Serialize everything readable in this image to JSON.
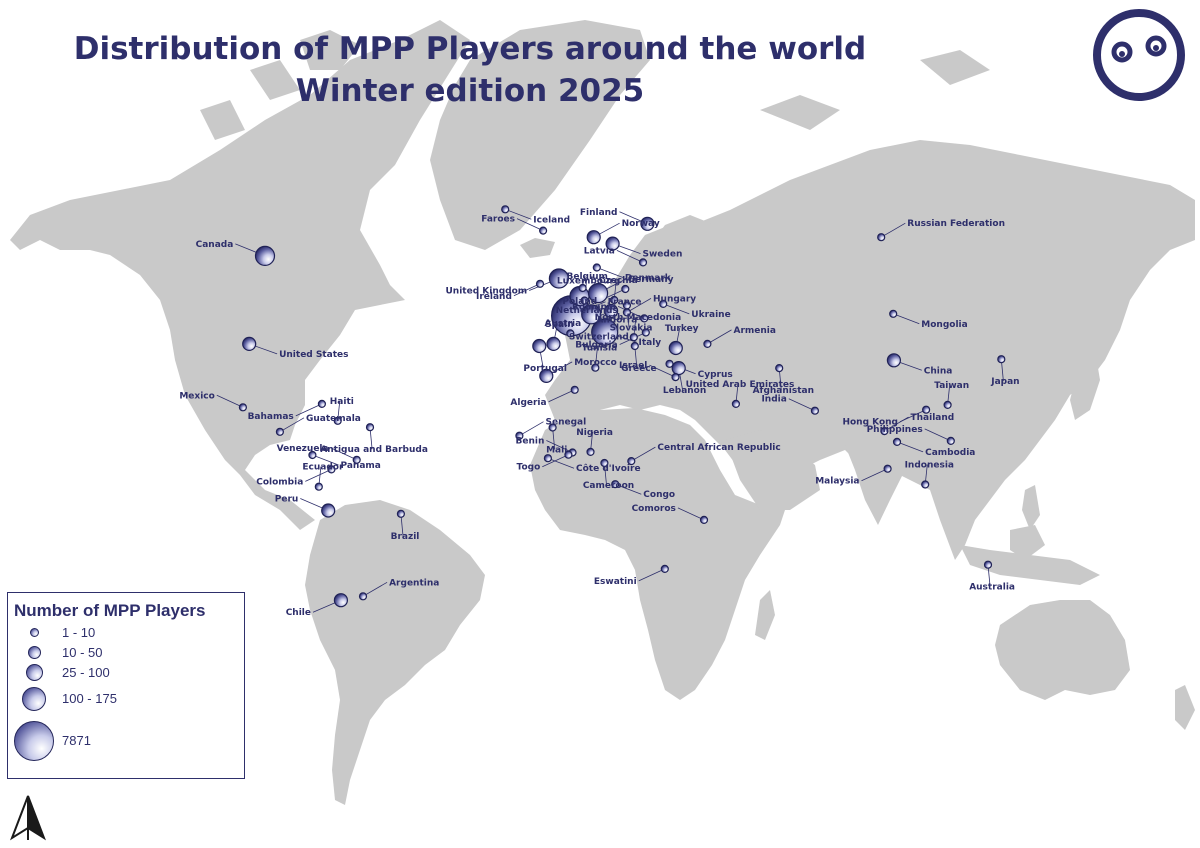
{
  "title_line1": "Distribution of MPP Players around the world",
  "title_line2": "Winter edition 2025",
  "colors": {
    "land": "#c9c9c9",
    "ocean": "#ffffff",
    "accent": "#2e2f6b"
  },
  "legend": {
    "title": "Number of MPP Players",
    "classes": [
      {
        "label": "1 - 10",
        "size": 1
      },
      {
        "label": "10 - 50",
        "size": 2
      },
      {
        "label": "25 - 100",
        "size": 3
      },
      {
        "label": "100 - 175",
        "size": 4
      },
      {
        "label": "7871",
        "size": 5
      }
    ]
  },
  "icons": {
    "logo": "face-logo-icon",
    "north_arrow": "north-arrow-icon"
  },
  "countries": [
    {
      "name": "Canada",
      "lon": -95,
      "lat": 58,
      "size": 3
    },
    {
      "name": "United States",
      "lon": -100,
      "lat": 40,
      "size": 2
    },
    {
      "name": "Mexico",
      "lon": -102,
      "lat": 23,
      "size": 1
    },
    {
      "name": "Bahamas",
      "lon": -77,
      "lat": 24,
      "size": 1
    },
    {
      "name": "Haiti",
      "lon": -72,
      "lat": 19,
      "size": 1
    },
    {
      "name": "Antigua and Barbuda",
      "lon": -61.8,
      "lat": 17.1,
      "size": 1
    },
    {
      "name": "Guatemala",
      "lon": -90.3,
      "lat": 15.7,
      "size": 1
    },
    {
      "name": "Panama",
      "lon": -80,
      "lat": 8.5,
      "size": 1
    },
    {
      "name": "Venezuela",
      "lon": -66,
      "lat": 7,
      "size": 1
    },
    {
      "name": "Colombia",
      "lon": -74,
      "lat": 4,
      "size": 1
    },
    {
      "name": "Ecuador",
      "lon": -78,
      "lat": -1.5,
      "size": 1
    },
    {
      "name": "Peru",
      "lon": -75,
      "lat": -9,
      "size": 2
    },
    {
      "name": "Brazil",
      "lon": -52,
      "lat": -10,
      "size": 1
    },
    {
      "name": "Chile",
      "lon": -71,
      "lat": -35,
      "size": 2
    },
    {
      "name": "Argentina",
      "lon": -64,
      "lat": -34,
      "size": 1
    },
    {
      "name": "Iceland",
      "lon": -19,
      "lat": 65,
      "size": 1
    },
    {
      "name": "Faroes",
      "lon": -7,
      "lat": 62,
      "size": 1
    },
    {
      "name": "Ireland",
      "lon": -8,
      "lat": 53,
      "size": 1
    },
    {
      "name": "United Kingdom",
      "lon": -2,
      "lat": 54,
      "size": 3
    },
    {
      "name": "France",
      "lon": 2,
      "lat": 46.5,
      "size": 5
    },
    {
      "name": "Belgium",
      "lon": 4.5,
      "lat": 50.6,
      "size": 3
    },
    {
      "name": "Luxembourg",
      "lon": 6.1,
      "lat": 49.7,
      "size": 1
    },
    {
      "name": "Netherlands",
      "lon": 5.5,
      "lat": 52.2,
      "size": 1
    },
    {
      "name": "Spain",
      "lon": -3.7,
      "lat": 40,
      "size": 2
    },
    {
      "name": "Portugal",
      "lon": -8.2,
      "lat": 39.5,
      "size": 2
    },
    {
      "name": "Andorra",
      "lon": 1.6,
      "lat": 42.5,
      "size": 1
    },
    {
      "name": "Switzerland",
      "lon": 8.2,
      "lat": 46.8,
      "size": 3
    },
    {
      "name": "Italy",
      "lon": 12.5,
      "lat": 42.8,
      "size": 4
    },
    {
      "name": "Germany",
      "lon": 10.4,
      "lat": 51.2,
      "size": 3
    },
    {
      "name": "Denmark",
      "lon": 10,
      "lat": 56,
      "size": 1
    },
    {
      "name": "Norway",
      "lon": 9,
      "lat": 61,
      "size": 2
    },
    {
      "name": "Sweden",
      "lon": 15,
      "lat": 60,
      "size": 2
    },
    {
      "name": "Finland",
      "lon": 26,
      "lat": 63,
      "size": 2
    },
    {
      "name": "Latvia",
      "lon": 24.6,
      "lat": 56.9,
      "size": 1
    },
    {
      "name": "Poland",
      "lon": 19,
      "lat": 52,
      "size": 1
    },
    {
      "name": "Czechia",
      "lon": 15.5,
      "lat": 49.8,
      "size": 1
    },
    {
      "name": "Slovakia",
      "lon": 19.5,
      "lat": 48.7,
      "size": 1
    },
    {
      "name": "Austria",
      "lon": 14.5,
      "lat": 47.5,
      "size": 2
    },
    {
      "name": "Hungary",
      "lon": 19.5,
      "lat": 47.2,
      "size": 1
    },
    {
      "name": "Ukraine",
      "lon": 31,
      "lat": 49,
      "size": 1
    },
    {
      "name": "Romania",
      "lon": 25,
      "lat": 45.9,
      "size": 1
    },
    {
      "name": "Bulgaria",
      "lon": 25.5,
      "lat": 42.7,
      "size": 1
    },
    {
      "name": "North Macedonia",
      "lon": 21.7,
      "lat": 41.6,
      "size": 1
    },
    {
      "name": "Greece",
      "lon": 22,
      "lat": 39.5,
      "size": 1
    },
    {
      "name": "Turkey",
      "lon": 35,
      "lat": 39,
      "size": 2
    },
    {
      "name": "Armenia",
      "lon": 45,
      "lat": 40,
      "size": 1
    },
    {
      "name": "Cyprus",
      "lon": 33,
      "lat": 35,
      "size": 1
    },
    {
      "name": "Lebanon",
      "lon": 35.9,
      "lat": 33.9,
      "size": 2
    },
    {
      "name": "Israel",
      "lon": 34.9,
      "lat": 31.5,
      "size": 1
    },
    {
      "name": "Morocco",
      "lon": -6,
      "lat": 31.8,
      "size": 2
    },
    {
      "name": "Algeria",
      "lon": 3,
      "lat": 28,
      "size": 1
    },
    {
      "name": "Tunisia",
      "lon": 9.5,
      "lat": 34,
      "size": 1
    },
    {
      "name": "Mali",
      "lon": -4,
      "lat": 17,
      "size": 1
    },
    {
      "name": "Senegal",
      "lon": -14.5,
      "lat": 14.5,
      "size": 1
    },
    {
      "name": "Côte d'Ivoire",
      "lon": -5.5,
      "lat": 7.5,
      "size": 1
    },
    {
      "name": "Benin",
      "lon": 2.3,
      "lat": 9.3,
      "size": 1
    },
    {
      "name": "Togo",
      "lon": 1,
      "lat": 8.6,
      "size": 1
    },
    {
      "name": "Nigeria",
      "lon": 8,
      "lat": 9.5,
      "size": 1
    },
    {
      "name": "Cameroon",
      "lon": 12.4,
      "lat": 6,
      "size": 1
    },
    {
      "name": "Central African Republic",
      "lon": 20.9,
      "lat": 6.6,
      "size": 1
    },
    {
      "name": "Congo",
      "lon": 15.8,
      "lat": -0.7,
      "size": 1
    },
    {
      "name": "Comoros",
      "lon": 43.9,
      "lat": -11.9,
      "size": 1
    },
    {
      "name": "Eswatini",
      "lon": 31.5,
      "lat": -26.5,
      "size": 1
    },
    {
      "name": "United Arab Emirates",
      "lon": 54,
      "lat": 24,
      "size": 1
    },
    {
      "name": "Afghanistan",
      "lon": 67.7,
      "lat": 33.9,
      "size": 1
    },
    {
      "name": "Russian Federation",
      "lon": 100,
      "lat": 61,
      "size": 1
    },
    {
      "name": "Mongolia",
      "lon": 103.8,
      "lat": 46.9,
      "size": 1
    },
    {
      "name": "China",
      "lon": 104,
      "lat": 35.9,
      "size": 2
    },
    {
      "name": "India",
      "lon": 79,
      "lat": 22,
      "size": 1
    },
    {
      "name": "Hong Kong",
      "lon": 114.2,
      "lat": 22.3,
      "size": 1
    },
    {
      "name": "Taiwan",
      "lon": 121,
      "lat": 23.7,
      "size": 1
    },
    {
      "name": "Japan",
      "lon": 138,
      "lat": 36.2,
      "size": 1
    },
    {
      "name": "Thailand",
      "lon": 101,
      "lat": 15.9,
      "size": 1
    },
    {
      "name": "Cambodia",
      "lon": 105,
      "lat": 12.6,
      "size": 1
    },
    {
      "name": "Philippines",
      "lon": 122,
      "lat": 12.9,
      "size": 1
    },
    {
      "name": "Malaysia",
      "lon": 102,
      "lat": 4.2,
      "size": 1
    },
    {
      "name": "Indonesia",
      "lon": 113.9,
      "lat": -0.8,
      "size": 1
    },
    {
      "name": "Australia",
      "lon": 133.8,
      "lat": -25.3,
      "size": 1
    }
  ]
}
